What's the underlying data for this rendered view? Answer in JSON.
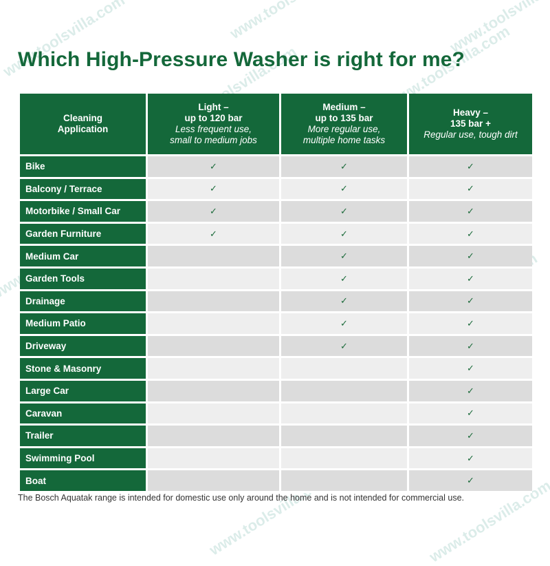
{
  "title": "Which High-Pressure Washer is right for me?",
  "table": {
    "columns": [
      {
        "name": "Cleaning",
        "range": "Application",
        "desc1": "",
        "desc2": ""
      },
      {
        "name": "Light –",
        "range": "up to 120 bar",
        "desc1": "Less frequent use,",
        "desc2": "small to medium jobs"
      },
      {
        "name": "Medium –",
        "range": "up to 135 bar",
        "desc1": "More regular use,",
        "desc2": "multiple home tasks"
      },
      {
        "name": "Heavy –",
        "range": "135 bar +",
        "desc1": "Regular use, tough dirt",
        "desc2": ""
      }
    ],
    "check_symbol": "✓",
    "rows": [
      {
        "label": "Bike",
        "light": "✓",
        "medium": "✓",
        "heavy": "✓"
      },
      {
        "label": "Balcony / Terrace",
        "light": "✓",
        "medium": "✓",
        "heavy": "✓"
      },
      {
        "label": "Motorbike / Small Car",
        "light": "✓",
        "medium": "✓",
        "heavy": "✓"
      },
      {
        "label": "Garden Furniture",
        "light": "✓",
        "medium": "✓",
        "heavy": "✓"
      },
      {
        "label": "Medium Car",
        "light": "",
        "medium": "✓",
        "heavy": "✓"
      },
      {
        "label": "Garden Tools",
        "light": "",
        "medium": "✓",
        "heavy": "✓"
      },
      {
        "label": "Drainage",
        "light": "",
        "medium": "✓",
        "heavy": "✓"
      },
      {
        "label": "Medium Patio",
        "light": "",
        "medium": "✓",
        "heavy": "✓"
      },
      {
        "label": "Driveway",
        "light": "",
        "medium": "✓",
        "heavy": "✓"
      },
      {
        "label": "Stone & Masonry",
        "light": "",
        "medium": "",
        "heavy": "✓"
      },
      {
        "label": "Large Car",
        "light": "",
        "medium": "",
        "heavy": "✓"
      },
      {
        "label": "Caravan",
        "light": "",
        "medium": "",
        "heavy": "✓"
      },
      {
        "label": "Trailer",
        "light": "",
        "medium": "",
        "heavy": "✓"
      },
      {
        "label": "Swimming Pool",
        "light": "",
        "medium": "",
        "heavy": "✓"
      },
      {
        "label": "Boat",
        "light": "",
        "medium": "",
        "heavy": "✓"
      }
    ]
  },
  "footnote": "The Bosch Aquatak range is intended for domestic use only around the home and is not intended for commercial use.",
  "watermark": {
    "url": "www.toolsvilla.com",
    "brand": "TOOLSVILLA"
  },
  "colors": {
    "brand_green": "#14683a",
    "row_dark": "#dcdcdc",
    "row_light": "#eeeeee"
  }
}
